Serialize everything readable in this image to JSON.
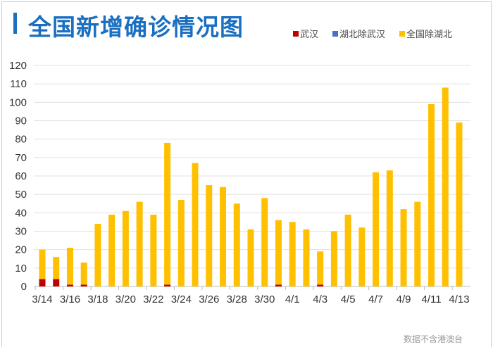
{
  "chart_data": {
    "type": "bar",
    "stacked": true,
    "title": "全国新增确诊情况图",
    "xlabel": "",
    "ylabel": "",
    "ylim": [
      0,
      120
    ],
    "yticks": [
      0,
      10,
      20,
      30,
      40,
      50,
      60,
      70,
      80,
      90,
      100,
      110,
      120
    ],
    "grid": true,
    "legend_position": "top-right",
    "categories": [
      "3/14",
      "3/15",
      "3/16",
      "3/17",
      "3/18",
      "3/19",
      "3/20",
      "3/21",
      "3/22",
      "3/23",
      "3/24",
      "3/25",
      "3/26",
      "3/27",
      "3/28",
      "3/29",
      "3/30",
      "3/31",
      "4/1",
      "4/2",
      "4/3",
      "4/4",
      "4/5",
      "4/6",
      "4/7",
      "4/8",
      "4/9",
      "4/10",
      "4/11",
      "4/12",
      "4/13"
    ],
    "tick_labels": [
      "3/14",
      "3/16",
      "3/18",
      "3/20",
      "3/22",
      "3/24",
      "3/26",
      "3/28",
      "3/30",
      "4/1",
      "4/3",
      "4/5",
      "4/7",
      "4/9",
      "4/11",
      "4/13"
    ],
    "series": [
      {
        "name": "武汉",
        "color": "#c00000",
        "values": [
          4,
          4,
          1,
          1,
          0,
          0,
          0,
          0,
          0,
          1,
          0,
          0,
          0,
          0,
          0,
          0,
          0,
          1,
          0,
          0,
          1,
          0,
          0,
          0,
          0,
          0,
          0,
          0,
          0,
          0,
          0
        ]
      },
      {
        "name": "湖北除武汉",
        "color": "#4472c4",
        "values": [
          0,
          0,
          0,
          0,
          0,
          0,
          0,
          0,
          0,
          0,
          0,
          0,
          0,
          0,
          0,
          0,
          0,
          0,
          0,
          0,
          0,
          0,
          0,
          0,
          0,
          0,
          0,
          0,
          0,
          0,
          0
        ]
      },
      {
        "name": "全国除湖北",
        "color": "#ffc000",
        "values": [
          16,
          12,
          20,
          12,
          34,
          39,
          41,
          46,
          39,
          77,
          47,
          67,
          55,
          54,
          45,
          31,
          48,
          35,
          35,
          31,
          18,
          30,
          39,
          32,
          62,
          63,
          42,
          46,
          99,
          108,
          89
        ]
      }
    ]
  },
  "footnote": "数据不含港澳台"
}
